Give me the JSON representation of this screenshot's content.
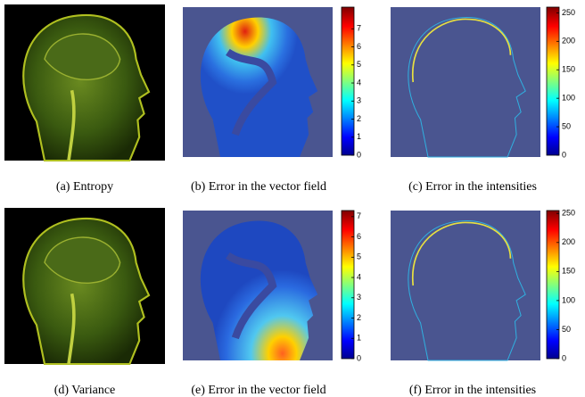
{
  "figure": {
    "panels": [
      {
        "caption": "(a) Entropy"
      },
      {
        "caption": "(b) Error in the vector field",
        "colorbar": {
          "ylim": [
            0,
            8.2
          ],
          "yticks": [
            0,
            1,
            2,
            3,
            4,
            5,
            6,
            7
          ]
        }
      },
      {
        "caption": "(c) Error in the intensities",
        "colorbar": {
          "ylim": [
            0,
            260
          ],
          "yticks": [
            0,
            50,
            100,
            150,
            200,
            250
          ]
        }
      },
      {
        "caption": "(d) Variance"
      },
      {
        "caption": "(e) Error in the vector field",
        "colorbar": {
          "ylim": [
            0,
            7.3
          ],
          "yticks": [
            0,
            1,
            2,
            3,
            4,
            5,
            6,
            7
          ]
        }
      },
      {
        "caption": "(f) Error in the intensities",
        "colorbar": {
          "ylim": [
            0,
            255
          ],
          "yticks": [
            0,
            50,
            100,
            150,
            200,
            250
          ]
        }
      }
    ]
  }
}
